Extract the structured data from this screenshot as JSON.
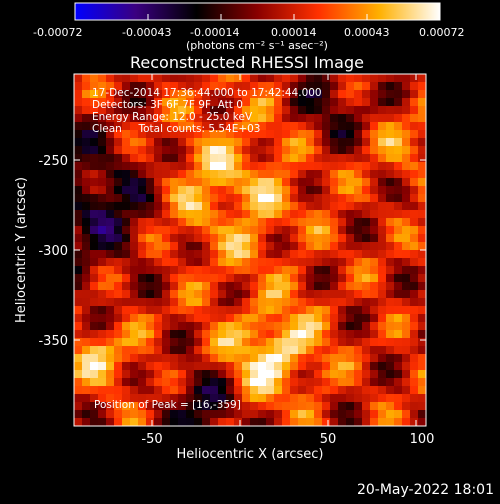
{
  "colorbar": {
    "ticks": [
      "-0.00072",
      "-0.00043",
      "-0.00014",
      "0.00014",
      "0.00043",
      "0.00072"
    ],
    "unit_label": "(photons cm⁻² s⁻¹ asec⁻²)",
    "colormap": [
      "#0000ff",
      "#3a0080",
      "#000000",
      "#8a0000",
      "#ff3000",
      "#ffb000",
      "#ffffff"
    ]
  },
  "title": "Reconstructed RHESSI Image",
  "info": {
    "time_range": "17-Dec-2014 17:36:44.000 to 17:42:44.000",
    "detectors": "Detectors: 3F 6F 7F 9F, Att 0",
    "energy_range": "Energy Range: 12.0 - 25.0 keV",
    "clean_counts": "Clean     Total counts: 5.54E+03",
    "peak_position": "Position of Peak = [16,-359]"
  },
  "axes": {
    "x_label": "Heliocentric X (arcsec)",
    "y_label": "Heliocentric Y (arcsec)",
    "x_ticks": [
      "-50",
      "0",
      "50",
      "100"
    ],
    "y_ticks": [
      "-250",
      "-300",
      "-350"
    ]
  },
  "footer": {
    "timestamp": "20-May-2022 18:01"
  }
}
